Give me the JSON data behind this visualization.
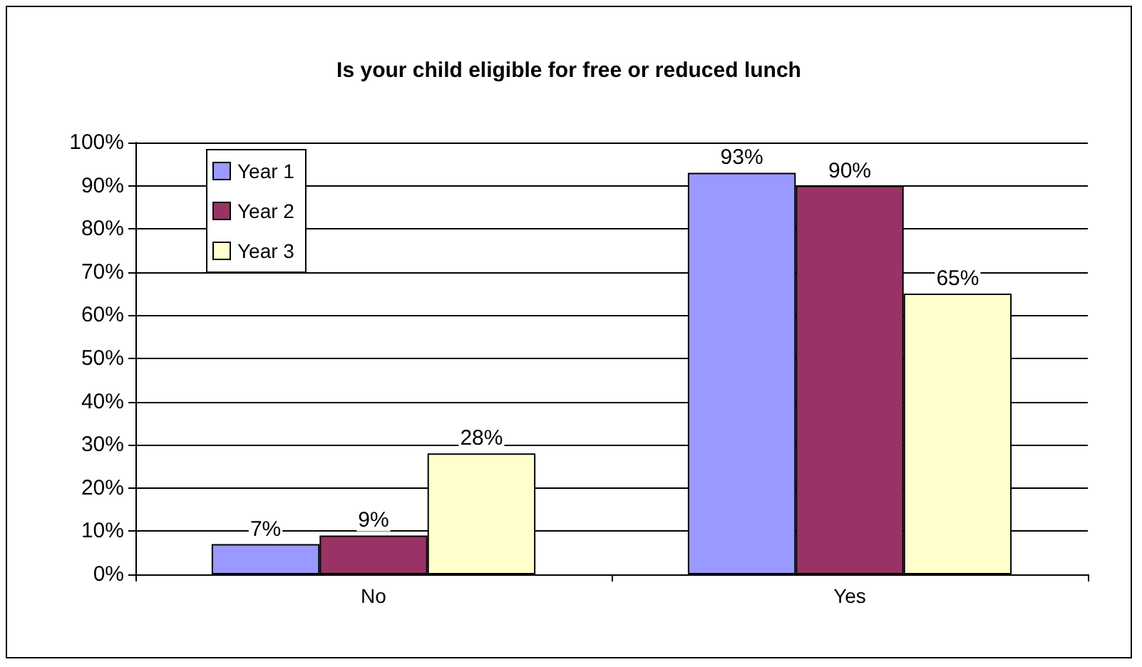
{
  "chart_data": {
    "type": "bar",
    "title": "Is your child eligible for free or reduced lunch",
    "categories": [
      "No",
      "Yes"
    ],
    "series": [
      {
        "name": "Year 1",
        "color": "#9999ff",
        "values": [
          7,
          93
        ],
        "value_labels": [
          "7%",
          "93%"
        ]
      },
      {
        "name": "Year 2",
        "color": "#993366",
        "values": [
          9,
          90
        ],
        "value_labels": [
          "9%",
          "90%"
        ]
      },
      {
        "name": "Year 3",
        "color": "#ffffcc",
        "values": [
          28,
          65
        ],
        "value_labels": [
          "28%",
          "65%"
        ]
      }
    ],
    "ylim": [
      0,
      100
    ],
    "yticks": [
      {
        "value": 0,
        "label": "0%"
      },
      {
        "value": 10,
        "label": "10%"
      },
      {
        "value": 20,
        "label": "20%"
      },
      {
        "value": 30,
        "label": "30%"
      },
      {
        "value": 40,
        "label": "40%"
      },
      {
        "value": 50,
        "label": "50%"
      },
      {
        "value": 60,
        "label": "60%"
      },
      {
        "value": 70,
        "label": "70%"
      },
      {
        "value": 80,
        "label": "80%"
      },
      {
        "value": 90,
        "label": "90%"
      },
      {
        "value": 100,
        "label": "100%"
      }
    ],
    "grid": "y",
    "legend": "top left"
  }
}
